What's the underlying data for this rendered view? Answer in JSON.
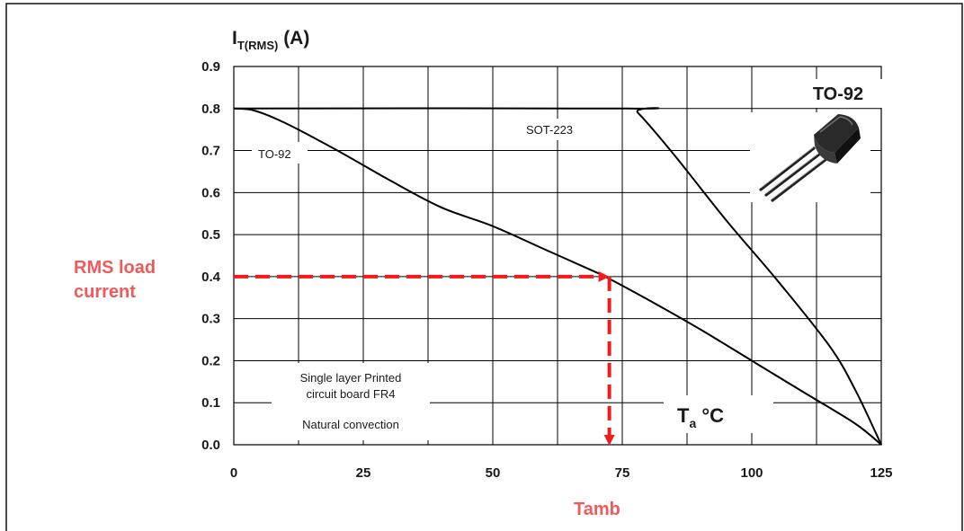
{
  "chart_data": {
    "type": "line",
    "title": "",
    "ylabel_main": "I",
    "ylabel_sub": "T(RMS)",
    "ylabel_unit": "(A)",
    "xaxis_annotation_main": "T",
    "xaxis_annotation_sub": "a",
    "xaxis_annotation_unit": "°C",
    "xlim": [
      0,
      125
    ],
    "ylim": [
      0,
      0.9
    ],
    "xticks": [
      0,
      25,
      50,
      75,
      100,
      125
    ],
    "yticks": [
      0.0,
      0.1,
      0.2,
      0.3,
      0.4,
      0.5,
      0.6,
      0.7,
      0.8,
      0.9
    ],
    "ytick_labels": [
      "0.0",
      "0.1",
      "0.2",
      "0.3",
      "0.4",
      "0.5",
      "0.6",
      "0.7",
      "0.8",
      "0.9"
    ],
    "xtick_labels": [
      "0",
      "25",
      "50",
      "75",
      "100",
      "125"
    ],
    "grid": true,
    "series": [
      {
        "name": "TO-92",
        "x": [
          0,
          4,
          10,
          20,
          30,
          40,
          50,
          60,
          70,
          72.5,
          80,
          90,
          100,
          110,
          120,
          125
        ],
        "y": [
          0.8,
          0.795,
          0.765,
          0.7,
          0.63,
          0.565,
          0.52,
          0.465,
          0.41,
          0.395,
          0.345,
          0.275,
          0.2,
          0.125,
          0.05,
          0.0
        ]
      },
      {
        "name": "SOT-223",
        "x": [
          0,
          76,
          78,
          85,
          95,
          105,
          115,
          120,
          125
        ],
        "y": [
          0.8,
          0.8,
          0.79,
          0.69,
          0.535,
          0.39,
          0.235,
          0.13,
          0.0
        ]
      }
    ],
    "marker": {
      "x": 72.5,
      "y": 0.4,
      "color": "#ee1c1c"
    },
    "annotations": {
      "to92_label": "TO-92",
      "sot223_label": "SOT-223",
      "board_line1": "Single layer Printed",
      "board_line2": "circuit board FR4",
      "convection": "Natural convection",
      "package_title": "TO-92",
      "rms_line1": "RMS load",
      "rms_line2": "current",
      "tamb": "Tamb"
    }
  },
  "colors": {
    "curve": "#000000",
    "grid": "#000000",
    "highlight": "#ee1c1c",
    "highlight_text": "#f05a5a"
  },
  "icon": "to92-package-icon"
}
